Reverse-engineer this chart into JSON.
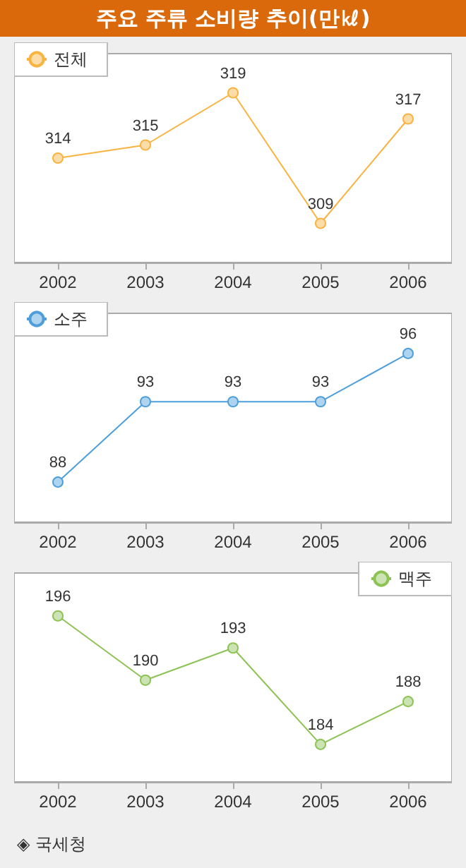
{
  "chart_data": [
    {
      "type": "line",
      "title": "주요 주류 소비량 추이(만㎘)",
      "categories": [
        "2002",
        "2003",
        "2004",
        "2005",
        "2006"
      ],
      "series": [
        {
          "name": "전체",
          "color": "#f9b340",
          "values": [
            314,
            315,
            319,
            309,
            317
          ]
        }
      ],
      "ylim": [
        306,
        322
      ],
      "tick_labels": "x",
      "data_labels": true,
      "marker": "circle",
      "legend": "top left",
      "grid": false
    },
    {
      "type": "line",
      "categories": [
        "2002",
        "2003",
        "2004",
        "2005",
        "2006"
      ],
      "series": [
        {
          "name": "소주",
          "color": "#4d9fdc",
          "values": [
            88,
            93,
            93,
            93,
            96
          ]
        }
      ],
      "ylim": [
        85.5,
        98.5
      ],
      "tick_labels": "x",
      "data_labels": true,
      "marker": "circle",
      "legend": "top left",
      "grid": false
    },
    {
      "type": "line",
      "categories": [
        "2002",
        "2003",
        "2004",
        "2005",
        "2006"
      ],
      "series": [
        {
          "name": "맥주",
          "color": "#8dc255",
          "values": [
            196,
            190,
            193,
            184,
            188
          ]
        }
      ],
      "ylim": [
        180.5,
        200
      ],
      "tick_labels": "x",
      "data_labels": true,
      "marker": "circle",
      "legend": "top right",
      "grid": false,
      "annotations": [
        "◈ 국세청"
      ]
    }
  ]
}
